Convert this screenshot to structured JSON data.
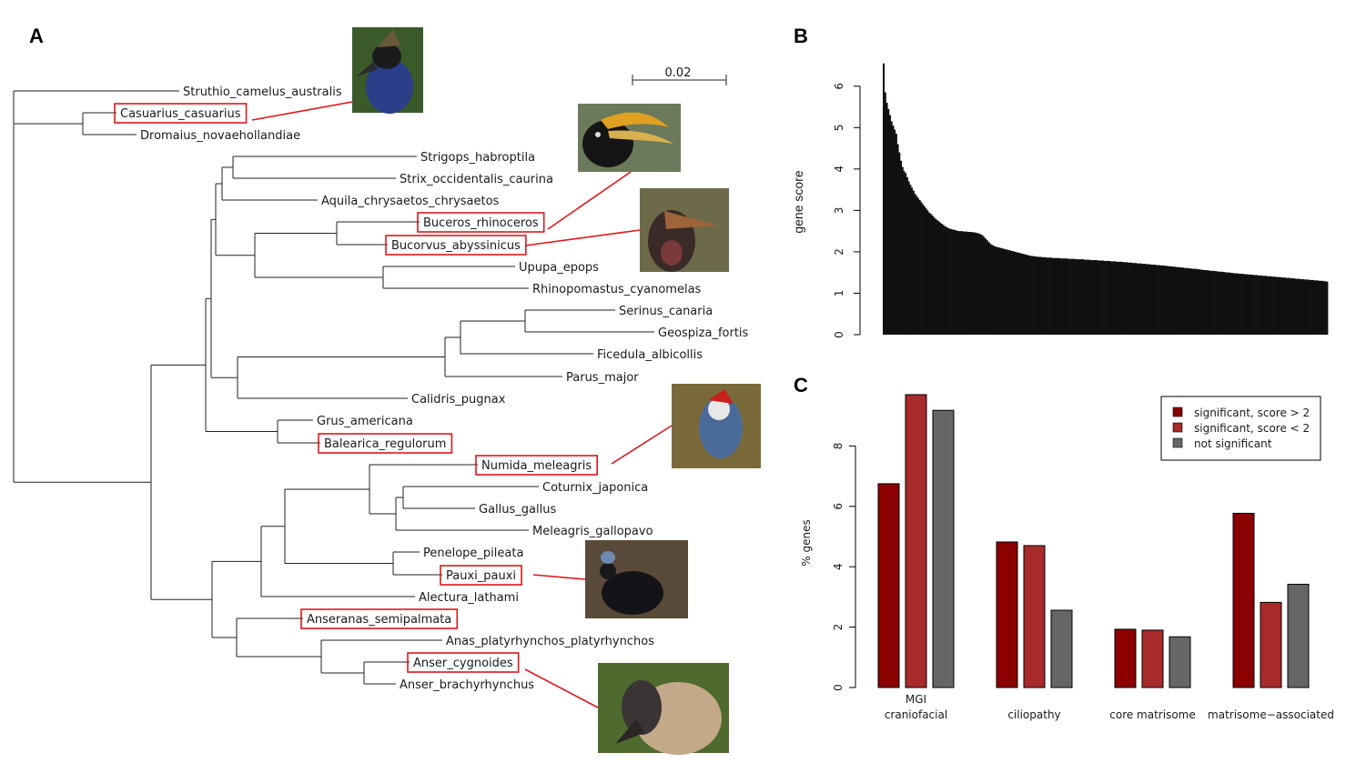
{
  "panels": {
    "a": "A",
    "b": "B",
    "c": "C"
  },
  "tree": {
    "scale_label": "0.02",
    "leaves": [
      {
        "name": "Struthio_camelus_australis",
        "highlighted": false
      },
      {
        "name": "Casuarius_casuarius",
        "highlighted": true
      },
      {
        "name": "Dromaius_novaehollandiae",
        "highlighted": false
      },
      {
        "name": "Strigops_habroptila",
        "highlighted": false
      },
      {
        "name": "Strix_occidentalis_caurina",
        "highlighted": false
      },
      {
        "name": "Aquila_chrysaetos_chrysaetos",
        "highlighted": false
      },
      {
        "name": "Buceros_rhinoceros",
        "highlighted": true
      },
      {
        "name": "Bucorvus_abyssinicus",
        "highlighted": true
      },
      {
        "name": "Upupa_epops",
        "highlighted": false
      },
      {
        "name": "Rhinopomastus_cyanomelas",
        "highlighted": false
      },
      {
        "name": "Serinus_canaria",
        "highlighted": false
      },
      {
        "name": "Geospiza_fortis",
        "highlighted": false
      },
      {
        "name": "Ficedula_albicollis",
        "highlighted": false
      },
      {
        "name": "Parus_major",
        "highlighted": false
      },
      {
        "name": "Calidris_pugnax",
        "highlighted": false
      },
      {
        "name": "Grus_americana",
        "highlighted": false
      },
      {
        "name": "Balearica_regulorum",
        "highlighted": true
      },
      {
        "name": "Numida_meleagris",
        "highlighted": true
      },
      {
        "name": "Coturnix_japonica",
        "highlighted": false
      },
      {
        "name": "Gallus_gallus",
        "highlighted": false
      },
      {
        "name": "Meleagris_gallopavo",
        "highlighted": false
      },
      {
        "name": "Penelope_pileata",
        "highlighted": false
      },
      {
        "name": "Pauxi_pauxi",
        "highlighted": true
      },
      {
        "name": "Alectura_lathami",
        "highlighted": false
      },
      {
        "name": "Anseranas_semipalmata",
        "highlighted": true
      },
      {
        "name": "Anas_platyrhynchos_platyrhynchos",
        "highlighted": false
      },
      {
        "name": "Anser_cygnoides",
        "highlighted": true
      },
      {
        "name": "Anser_brachyrhynchus",
        "highlighted": false
      }
    ]
  },
  "chart_data": [
    {
      "type": "bar",
      "ylabel": "gene score",
      "ylim": [
        0,
        6.5
      ],
      "yticks": [
        "0",
        "1",
        "2",
        "3",
        "4",
        "5",
        "6"
      ],
      "values": [
        6.55,
        5.85,
        5.6,
        5.45,
        5.3,
        5.15,
        5.05,
        4.95,
        4.85,
        4.6,
        4.4,
        4.2,
        4.05,
        3.95,
        3.9,
        3.8,
        3.7,
        3.62,
        3.55,
        3.48,
        3.4,
        3.35,
        3.3,
        3.25,
        3.2,
        3.15,
        3.1,
        3.05,
        3.0,
        2.95,
        2.92,
        2.88,
        2.84,
        2.8,
        2.77,
        2.74,
        2.71,
        2.68,
        2.65,
        2.62,
        2.6,
        2.58,
        2.56,
        2.55,
        2.54,
        2.53,
        2.52,
        2.51,
        2.5,
        2.5,
        2.5,
        2.49,
        2.49,
        2.49,
        2.48,
        2.48,
        2.48,
        2.47,
        2.47,
        2.46,
        2.45,
        2.44,
        2.42,
        2.4,
        2.36,
        2.32,
        2.28,
        2.24,
        2.2,
        2.17,
        2.15,
        2.13,
        2.12,
        2.11,
        2.1,
        2.09,
        2.08,
        2.07,
        2.06,
        2.05,
        2.04,
        2.03,
        2.02,
        2.01,
        2.0,
        1.99,
        1.98,
        1.97,
        1.96,
        1.95,
        1.94,
        1.93,
        1.92,
        1.91,
        1.9,
        1.9,
        1.89,
        1.89,
        1.88,
        1.88,
        1.88,
        1.87,
        1.87,
        1.87,
        1.86,
        1.86,
        1.86,
        1.86,
        1.85,
        1.85,
        1.85,
        1.85,
        1.85,
        1.84,
        1.84,
        1.84,
        1.84,
        1.84,
        1.83,
        1.83,
        1.83,
        1.83,
        1.83,
        1.82,
        1.82,
        1.82,
        1.82,
        1.82,
        1.81,
        1.81,
        1.81,
        1.81,
        1.8,
        1.8,
        1.8,
        1.8,
        1.8,
        1.79,
        1.79,
        1.79,
        1.79,
        1.78,
        1.78,
        1.78,
        1.78,
        1.77,
        1.77,
        1.77,
        1.77,
        1.76,
        1.76,
        1.76,
        1.76,
        1.75,
        1.75,
        1.75,
        1.74,
        1.74,
        1.74,
        1.73,
        1.73,
        1.73,
        1.72,
        1.72,
        1.72,
        1.71,
        1.71,
        1.71,
        1.7,
        1.7,
        1.7,
        1.69,
        1.69,
        1.69,
        1.68,
        1.68,
        1.68,
        1.67,
        1.67,
        1.67,
        1.66,
        1.66,
        1.65,
        1.65,
        1.65,
        1.64,
        1.64,
        1.63,
        1.63,
        1.63,
        1.62,
        1.62,
        1.61,
        1.61,
        1.61,
        1.6,
        1.6,
        1.59,
        1.59,
        1.59,
        1.58,
        1.58,
        1.57,
        1.57,
        1.56,
        1.56,
        1.56,
        1.55,
        1.55,
        1.54,
        1.54,
        1.54,
        1.53,
        1.53,
        1.52,
        1.52,
        1.52,
        1.51,
        1.51,
        1.5,
        1.5,
        1.5,
        1.49,
        1.49,
        1.48,
        1.48,
        1.48,
        1.47,
        1.47,
        1.47,
        1.46,
        1.46,
        1.46,
        1.45,
        1.45,
        1.45,
        1.44,
        1.44,
        1.44,
        1.43,
        1.43,
        1.43,
        1.42,
        1.42,
        1.42,
        1.41,
        1.41,
        1.41,
        1.4,
        1.4,
        1.4,
        1.39,
        1.39,
        1.39,
        1.38,
        1.38,
        1.38,
        1.37,
        1.37,
        1.37,
        1.36,
        1.36,
        1.36,
        1.35,
        1.35,
        1.35,
        1.34,
        1.34,
        1.34,
        1.33,
        1.33,
        1.33,
        1.32,
        1.32,
        1.32,
        1.31,
        1.31,
        1.31,
        1.3,
        1.3,
        1.3,
        1.29,
        1.29,
        1.28
      ]
    },
    {
      "type": "bar",
      "ylabel": "% genes",
      "ylim": [
        0,
        10
      ],
      "yticks": [
        "0",
        "2",
        "4",
        "6",
        "8"
      ],
      "categories": [
        "MGI craniofacial",
        "ciliopathy",
        "core matrisome",
        "matrisome−associated"
      ],
      "category_lines": [
        [
          "MGI",
          "craniofacial"
        ],
        [
          "ciliopathy"
        ],
        [
          "core matrisome"
        ],
        [
          "matrisome−associated"
        ]
      ],
      "series": [
        {
          "name": "significant, score > 2",
          "color": "#8b0000",
          "values": [
            6.75,
            4.82,
            1.93,
            5.77
          ]
        },
        {
          "name": "significant, score < 2",
          "color": "#a82a2a",
          "values": [
            9.7,
            4.7,
            1.9,
            2.82
          ]
        },
        {
          "name": "not significant",
          "color": "#666666",
          "values": [
            9.18,
            2.56,
            1.68,
            3.42
          ]
        }
      ],
      "legend_position": "top-right"
    }
  ]
}
